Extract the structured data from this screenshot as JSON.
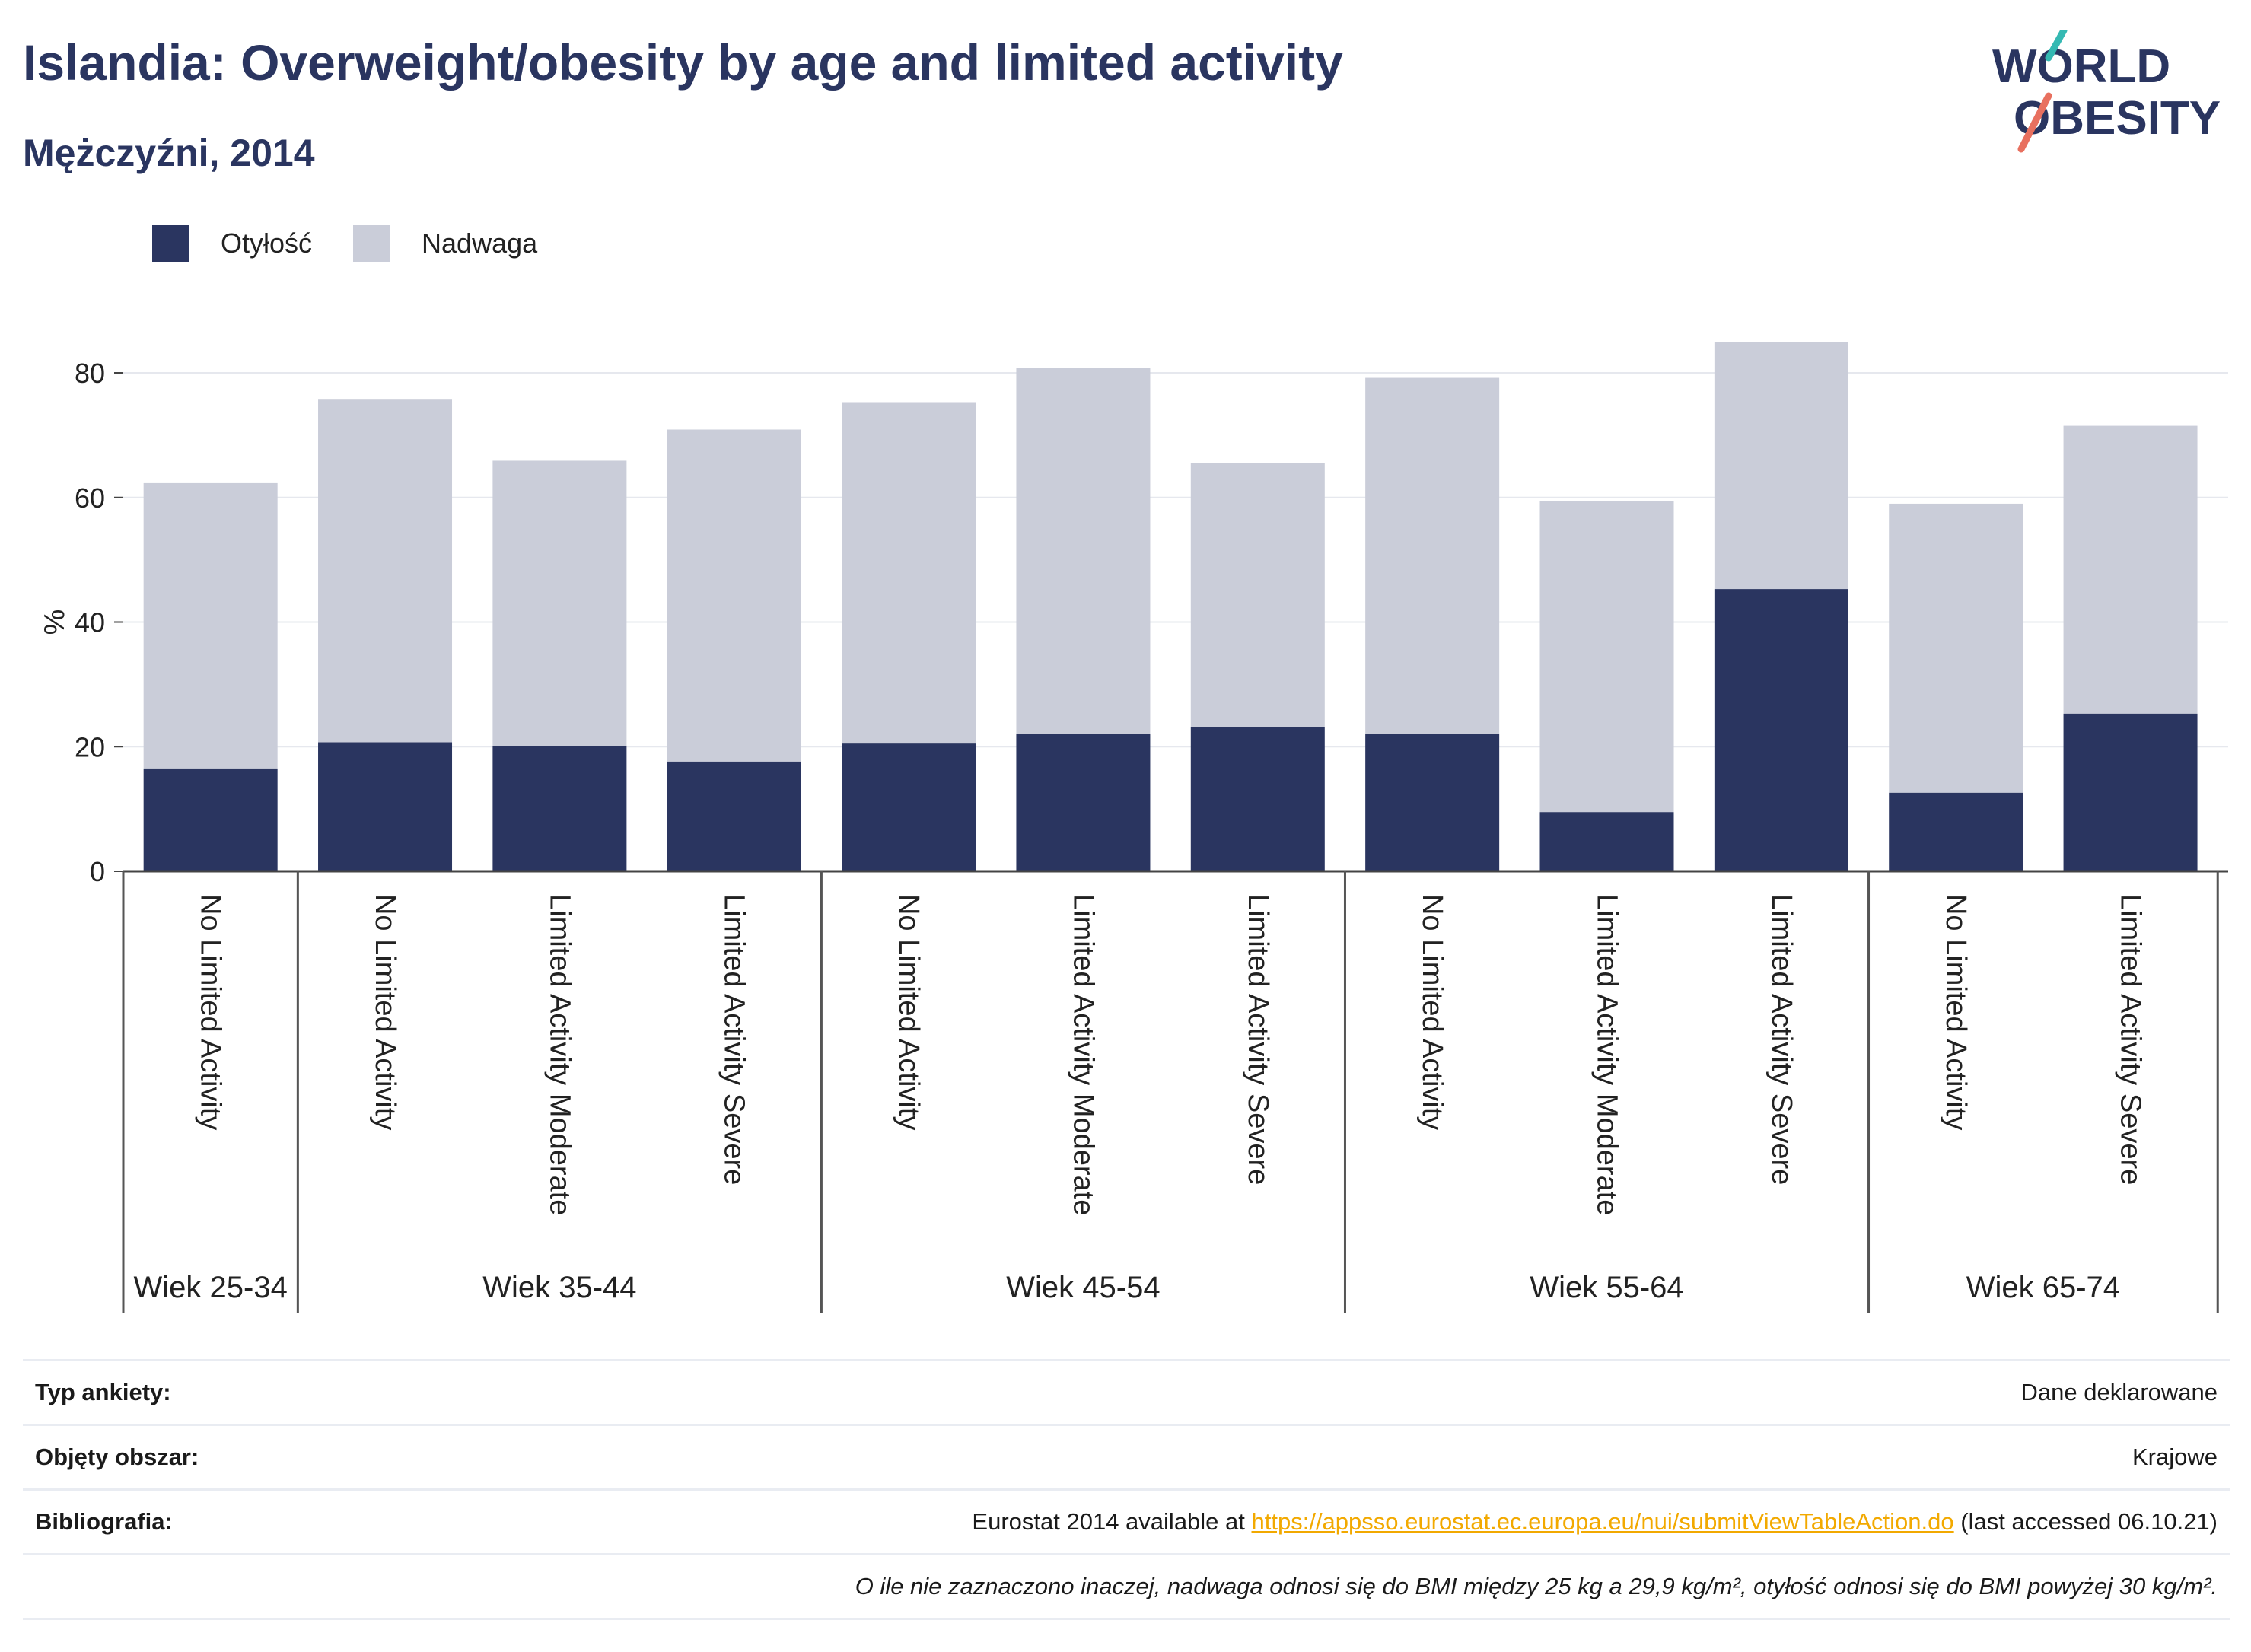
{
  "header": {
    "title": "Islandia: Overweight/obesity by age and limited activity",
    "subtitle": "Mężczyźni, 2014"
  },
  "logo": {
    "line1": "WORLD",
    "line2": "OBESITY"
  },
  "colors": {
    "obesity": "#2a3560",
    "overweight": "#cacdd9",
    "accent": "#f2a900",
    "logo_teal": "#35b9b3",
    "logo_red": "#e8705f"
  },
  "legend": {
    "obesity_label": "Otyłość",
    "overweight_label": "Nadwaga"
  },
  "chart_data": {
    "type": "bar",
    "stacked": true,
    "ylabel": "%",
    "ylim": [
      0,
      88
    ],
    "yticks": [
      0,
      20,
      40,
      60,
      80
    ],
    "grid": true,
    "legend_position": "top-left",
    "groups": [
      {
        "label": "Wiek 25-34",
        "bars": [
          "No Limited Activity"
        ]
      },
      {
        "label": "Wiek 35-44",
        "bars": [
          "No Limited Activity",
          "Limited Activity Moderate",
          "Limited Activity Severe"
        ]
      },
      {
        "label": "Wiek 45-54",
        "bars": [
          "No Limited Activity",
          "Limited Activity Moderate",
          "Limited Activity Severe"
        ]
      },
      {
        "label": "Wiek 55-64",
        "bars": [
          "No Limited Activity",
          "Limited Activity Moderate",
          "Limited Activity Severe"
        ]
      },
      {
        "label": "Wiek 65-74",
        "bars": [
          "No Limited Activity",
          "Limited Activity Severe"
        ]
      }
    ],
    "series": [
      {
        "name": "Otyłość",
        "values": [
          16.5,
          20.7,
          20.1,
          17.6,
          20.5,
          22.0,
          23.1,
          22.0,
          9.5,
          45.3,
          12.6,
          25.3
        ]
      },
      {
        "name": "Nadwaga",
        "values": [
          45.8,
          55.0,
          45.8,
          53.3,
          54.8,
          58.8,
          42.4,
          57.2,
          49.9,
          39.7,
          46.4,
          46.2
        ]
      }
    ]
  },
  "footer": {
    "survey_label": "Typ ankiety:",
    "survey_value": "Dane deklarowane",
    "area_label": "Objęty obszar:",
    "area_value": "Krajowe",
    "biblio_label": "Bibliografia:",
    "biblio_prefix": "Eurostat 2014 available at ",
    "biblio_link": "https://appsso.eurostat.ec.europa.eu/nui/submitViewTableAction.do",
    "biblio_suffix": " (last accessed 06.10.21)",
    "note": "O ile nie zaznaczono inaczej, nadwaga odnosi się do BMI między 25 kg a 29,9 kg/m², otyłość odnosi się do BMI powyżej 30 kg/m²."
  }
}
